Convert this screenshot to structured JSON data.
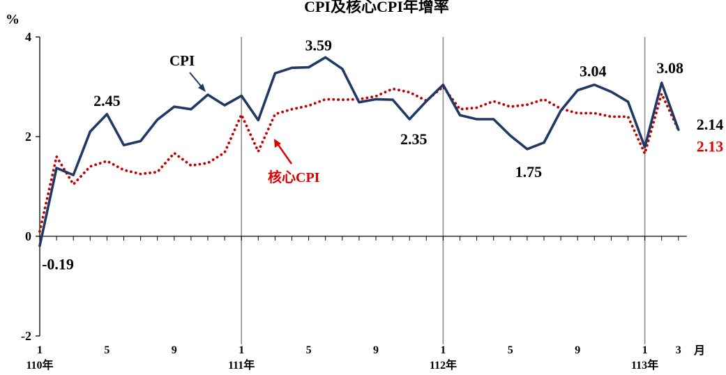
{
  "chart_data": {
    "type": "line",
    "title": "CPI及核心CPI年增率",
    "ylabel": "%",
    "xlabel": "月",
    "ylim": [
      -2,
      4
    ],
    "yticks": [
      -2,
      0,
      2,
      4
    ],
    "grid": false,
    "year_dividers": true,
    "year_labels": [
      {
        "index": 0,
        "label": "110年"
      },
      {
        "index": 12,
        "label": "111年"
      },
      {
        "index": 24,
        "label": "112年"
      },
      {
        "index": 36,
        "label": "113年"
      }
    ],
    "month_ticks": [
      {
        "index": 0,
        "label": "1"
      },
      {
        "index": 4,
        "label": "5"
      },
      {
        "index": 8,
        "label": "9"
      },
      {
        "index": 12,
        "label": "1"
      },
      {
        "index": 16,
        "label": "5"
      },
      {
        "index": 20,
        "label": "9"
      },
      {
        "index": 24,
        "label": "1"
      },
      {
        "index": 28,
        "label": "5"
      },
      {
        "index": 32,
        "label": "9"
      },
      {
        "index": 36,
        "label": "1"
      },
      {
        "index": 38,
        "label": "3"
      }
    ],
    "series": [
      {
        "name": "CPI",
        "color": "#1f3864",
        "style": "solid",
        "values": [
          -0.19,
          1.37,
          1.23,
          2.1,
          2.45,
          1.83,
          1.91,
          2.34,
          2.6,
          2.55,
          2.84,
          2.63,
          2.82,
          2.33,
          3.27,
          3.38,
          3.39,
          3.59,
          3.36,
          2.69,
          2.75,
          2.74,
          2.35,
          2.71,
          3.04,
          2.43,
          2.35,
          2.35,
          2.02,
          1.75,
          1.88,
          2.52,
          2.93,
          3.04,
          2.9,
          2.7,
          1.79,
          3.08,
          2.14
        ]
      },
      {
        "name": "核心CPI",
        "color": "#c00000",
        "style": "dotted",
        "values": [
          0.1,
          1.6,
          1.04,
          1.4,
          1.51,
          1.33,
          1.25,
          1.29,
          1.67,
          1.42,
          1.47,
          1.68,
          2.44,
          1.7,
          2.45,
          2.55,
          2.62,
          2.75,
          2.74,
          2.75,
          2.81,
          2.96,
          2.89,
          2.72,
          3.0,
          2.55,
          2.58,
          2.71,
          2.6,
          2.64,
          2.75,
          2.56,
          2.47,
          2.47,
          2.4,
          2.4,
          1.66,
          2.86,
          2.13
        ]
      }
    ],
    "data_labels": [
      {
        "series": 0,
        "index": 0,
        "text": "-0.19"
      },
      {
        "series": 0,
        "index": 4,
        "text": "2.45"
      },
      {
        "series": 0,
        "index": 17,
        "text": "3.59"
      },
      {
        "series": 0,
        "index": 22,
        "text": "2.35"
      },
      {
        "series": 0,
        "index": 29,
        "text": "1.75"
      },
      {
        "series": 0,
        "index": 33,
        "text": "3.04"
      },
      {
        "series": 0,
        "index": 37,
        "text": "3.08"
      },
      {
        "series": 0,
        "index": 38,
        "text": "2.14"
      },
      {
        "series": 1,
        "index": 38,
        "text": "2.13"
      }
    ],
    "annotations": [
      {
        "text": "CPI",
        "color": "#000000",
        "series": 0
      },
      {
        "text": "核心CPI",
        "color": "#e00000",
        "series": 1
      }
    ]
  }
}
